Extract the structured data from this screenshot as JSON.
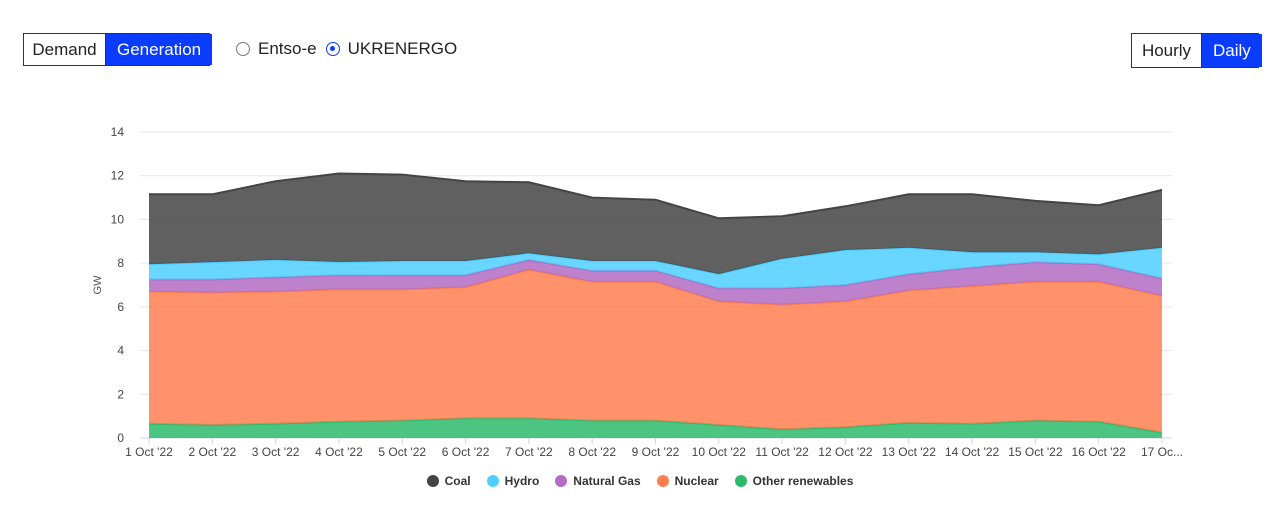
{
  "controls": {
    "source_toggle": [
      "Demand",
      "Generation"
    ],
    "source_active": 1,
    "data_sources": [
      "Entso-e",
      "UKRENERGO"
    ],
    "data_source_checked": 1,
    "resolution_toggle": [
      "Hourly",
      "Daily"
    ],
    "resolution_active": 1
  },
  "colors": {
    "Coal": "#444444",
    "Hydro": "#4dcfff",
    "Natural Gas": "#b36bc3",
    "Nuclear": "#ff7f50",
    "Other renewables": "#2bbb6b"
  },
  "chart_data": {
    "type": "area",
    "stacked": true,
    "ylabel": "GW",
    "ylim": [
      0,
      14
    ],
    "yticks": [
      0,
      2,
      4,
      6,
      8,
      10,
      12,
      14
    ],
    "grid": true,
    "legend_position": "bottom",
    "x": [
      "1 Oct '22",
      "2 Oct '22",
      "3 Oct '22",
      "4 Oct '22",
      "5 Oct '22",
      "6 Oct '22",
      "7 Oct '22",
      "8 Oct '22",
      "9 Oct '22",
      "10 Oct '22",
      "11 Oct '22",
      "12 Oct '22",
      "13 Oct '22",
      "14 Oct '22",
      "15 Oct '22",
      "16 Oct '22",
      "17 Oc..."
    ],
    "series": [
      {
        "name": "Other renewables",
        "values": [
          0.65,
          0.6,
          0.65,
          0.75,
          0.8,
          0.9,
          0.9,
          0.8,
          0.8,
          0.6,
          0.4,
          0.5,
          0.7,
          0.65,
          0.8,
          0.75,
          0.25
        ]
      },
      {
        "name": "Nuclear",
        "values": [
          6.05,
          6.05,
          6.05,
          6.05,
          6.0,
          6.0,
          6.8,
          6.35,
          6.35,
          5.65,
          5.7,
          5.75,
          6.05,
          6.3,
          6.35,
          6.4,
          6.25
        ]
      },
      {
        "name": "Natural Gas",
        "values": [
          0.55,
          0.6,
          0.65,
          0.65,
          0.65,
          0.55,
          0.45,
          0.5,
          0.5,
          0.6,
          0.75,
          0.75,
          0.75,
          0.85,
          0.9,
          0.8,
          0.8
        ]
      },
      {
        "name": "Hydro",
        "values": [
          0.7,
          0.8,
          0.8,
          0.6,
          0.65,
          0.65,
          0.3,
          0.45,
          0.45,
          0.65,
          1.35,
          1.6,
          1.2,
          0.7,
          0.45,
          0.45,
          1.4
        ]
      },
      {
        "name": "Coal",
        "values": [
          3.2,
          3.1,
          3.6,
          4.05,
          3.95,
          3.65,
          3.25,
          2.9,
          2.8,
          2.55,
          1.95,
          2.0,
          2.45,
          2.65,
          2.35,
          2.25,
          2.65
        ]
      }
    ]
  }
}
